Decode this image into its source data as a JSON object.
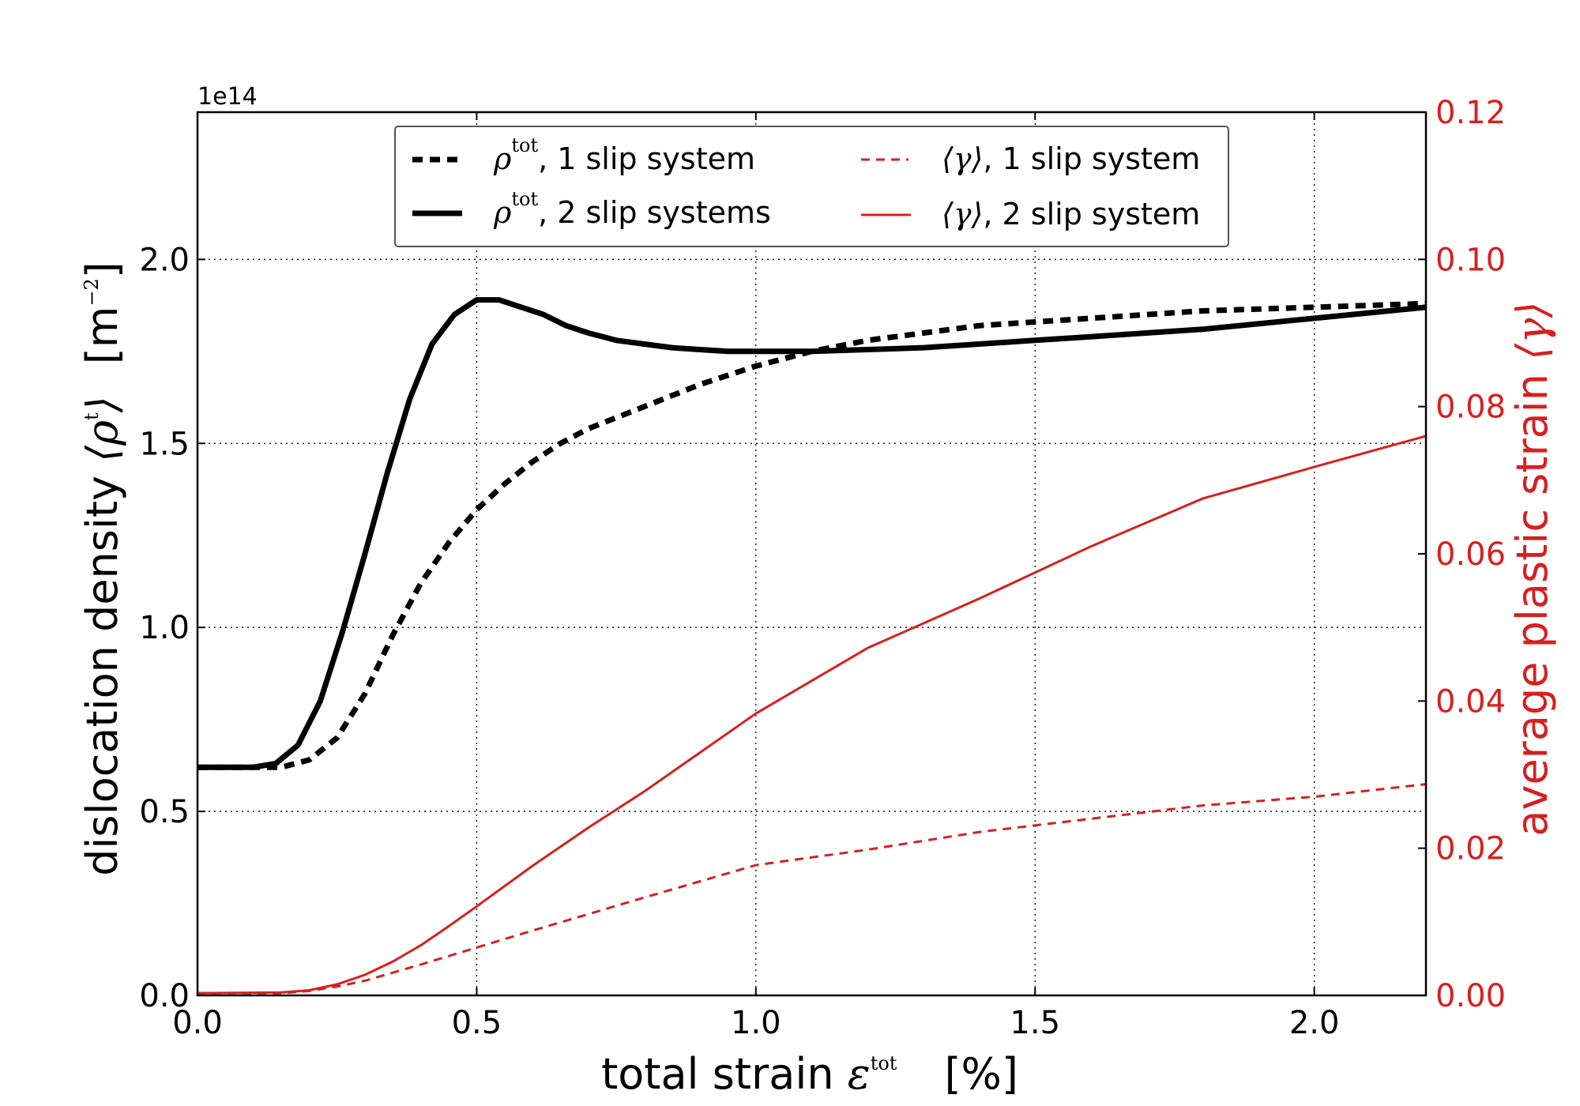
{
  "chart_data": {
    "type": "line",
    "title": "",
    "x_unit_label": "[%]",
    "y_left_unit_label": "[m",
    "y_left_unit_exp": "−2",
    "y_left_unit_close": "]",
    "y_right_symbol": "⟨γ⟩",
    "xlabel": {
      "text": "total strain ",
      "symbol": "ε",
      "sup": "tot",
      "unit": "[%]"
    },
    "ylabel_left": {
      "text": "dislocation density ",
      "symbol_open": "⟨",
      "symbol": "ρ",
      "sup": "t",
      "symbol_close": "⟩",
      "unit": "[m",
      "unit_exp": "−2",
      "unit_close": "]"
    },
    "ylabel_right": {
      "text": "average plastic strain ",
      "symbol": "⟨γ⟩"
    },
    "y_left_multiplier": "1e14",
    "xlim": [
      0.0,
      2.2
    ],
    "ylim_left": [
      0.0,
      2.4
    ],
    "ylim_right": [
      0.0,
      0.12
    ],
    "x_ticks": [
      "0.0",
      "0.5",
      "1.0",
      "1.5",
      "2.0"
    ],
    "y_left_ticks": [
      "0.0",
      "0.5",
      "1.0",
      "1.5",
      "2.0"
    ],
    "y_right_ticks": [
      "0.00",
      "0.02",
      "0.04",
      "0.06",
      "0.08",
      "0.10",
      "0.12"
    ],
    "grid": true,
    "legend_position": "top-center",
    "series": [
      {
        "name": "ρtot, 1 slip system",
        "legend_symbol": "ρ",
        "legend_sup": "tot",
        "legend_text": ", 1 slip system",
        "axis": "left",
        "color": "#000000",
        "style": "dashed-thick",
        "x": [
          0.0,
          0.1,
          0.15,
          0.2,
          0.25,
          0.3,
          0.35,
          0.4,
          0.45,
          0.5,
          0.55,
          0.6,
          0.65,
          0.7,
          0.8,
          0.9,
          1.0,
          1.1,
          1.2,
          1.3,
          1.4,
          1.5,
          1.6,
          1.8,
          2.0,
          2.2
        ],
        "y": [
          0.62,
          0.62,
          0.62,
          0.64,
          0.7,
          0.82,
          0.98,
          1.12,
          1.23,
          1.32,
          1.39,
          1.45,
          1.5,
          1.54,
          1.6,
          1.66,
          1.71,
          1.75,
          1.78,
          1.8,
          1.82,
          1.83,
          1.84,
          1.86,
          1.87,
          1.88
        ]
      },
      {
        "name": "ρtot, 2 slip systems",
        "legend_symbol": "ρ",
        "legend_sup": "tot",
        "legend_text": ", 2 slip systems",
        "axis": "left",
        "color": "#000000",
        "style": "solid-thick",
        "x": [
          0.0,
          0.1,
          0.14,
          0.18,
          0.22,
          0.26,
          0.3,
          0.34,
          0.38,
          0.42,
          0.46,
          0.5,
          0.54,
          0.58,
          0.62,
          0.66,
          0.7,
          0.75,
          0.8,
          0.85,
          0.9,
          0.95,
          1.0,
          1.1,
          1.2,
          1.3,
          1.4,
          1.5,
          1.6,
          1.8,
          2.0,
          2.2
        ],
        "y": [
          0.62,
          0.62,
          0.63,
          0.68,
          0.8,
          0.99,
          1.2,
          1.42,
          1.62,
          1.77,
          1.85,
          1.89,
          1.89,
          1.87,
          1.85,
          1.82,
          1.8,
          1.78,
          1.77,
          1.76,
          1.755,
          1.75,
          1.75,
          1.75,
          1.755,
          1.76,
          1.77,
          1.78,
          1.79,
          1.81,
          1.84,
          1.87
        ]
      },
      {
        "name": "⟨γ⟩, 1 slip system",
        "legend_symbol": "⟨γ⟩",
        "legend_sup": "",
        "legend_text": ", 1 slip system",
        "axis": "right",
        "color": "#d62020",
        "style": "dashed-thin",
        "x": [
          0.0,
          0.15,
          0.2,
          0.25,
          0.3,
          0.4,
          0.5,
          0.6,
          0.8,
          1.0,
          1.2,
          1.4,
          1.6,
          1.8,
          2.0,
          2.2
        ],
        "y": [
          0.0003,
          0.0003,
          0.0006,
          0.0012,
          0.002,
          0.0042,
          0.0065,
          0.0088,
          0.0133,
          0.0177,
          0.0198,
          0.0222,
          0.024,
          0.0258,
          0.027,
          0.0287
        ]
      },
      {
        "name": "⟨γ⟩, 2 slip system",
        "legend_symbol": "⟨γ⟩",
        "legend_sup": "",
        "legend_text": ", 2 slip system",
        "axis": "right",
        "color": "#d62020",
        "style": "solid-thin",
        "x": [
          0.0,
          0.15,
          0.2,
          0.25,
          0.3,
          0.35,
          0.4,
          0.45,
          0.5,
          0.6,
          0.7,
          0.8,
          1.0,
          1.2,
          1.4,
          1.6,
          1.8,
          2.0,
          2.2
        ],
        "y": [
          0.0003,
          0.0004,
          0.0007,
          0.0015,
          0.0028,
          0.0046,
          0.0068,
          0.0094,
          0.0121,
          0.0176,
          0.0228,
          0.0277,
          0.0383,
          0.0472,
          0.0539,
          0.061,
          0.0675,
          0.0718,
          0.076
        ]
      }
    ]
  }
}
